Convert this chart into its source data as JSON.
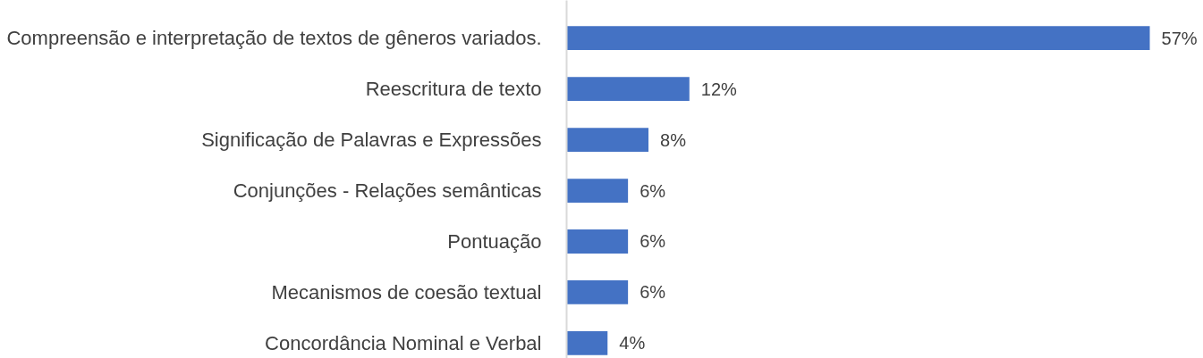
{
  "chart_data": {
    "type": "bar",
    "orientation": "horizontal",
    "categories": [
      "Compreensão e interpretação de textos de gêneros variados.",
      "Reescritura de texto",
      "Significação de Palavras e Expressões",
      "Conjunções - Relações semânticas",
      "Pontuação",
      "Mecanismos de coesão textual",
      "Concordância Nominal e Verbal"
    ],
    "values": [
      57,
      12,
      8,
      6,
      6,
      6,
      4
    ],
    "value_labels": [
      "57%",
      "12%",
      "8%",
      "6%",
      "6%",
      "6%",
      "4%"
    ],
    "color": "#4472c4"
  }
}
